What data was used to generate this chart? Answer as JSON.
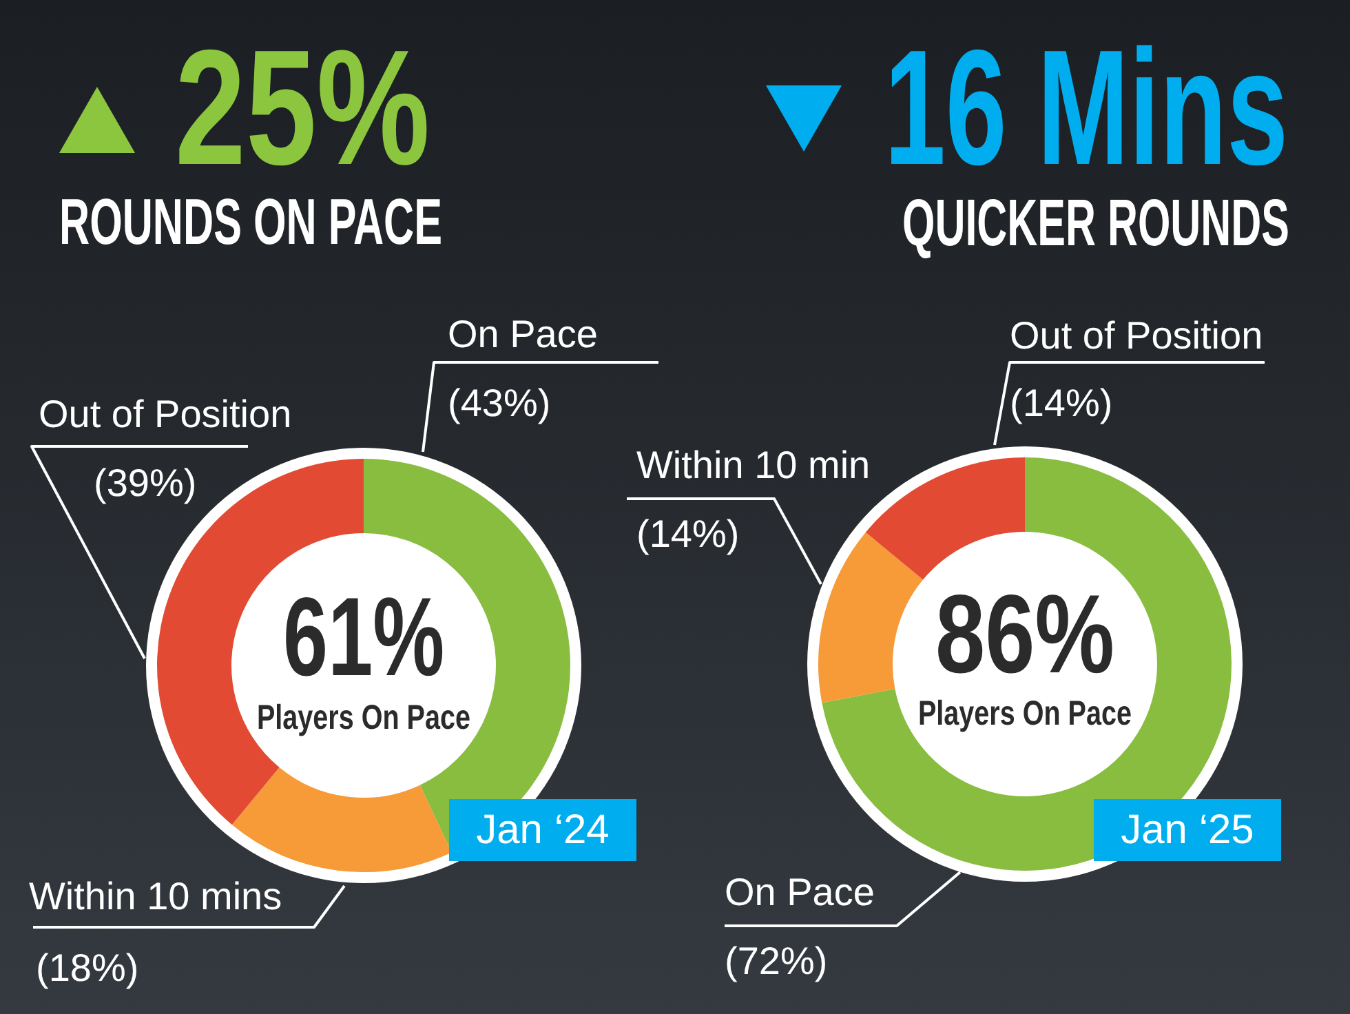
{
  "chart_data": [
    {
      "type": "other",
      "title": "25%",
      "subtitle": "ROUNDS ON PACE",
      "color": "#8cc63f"
    },
    {
      "type": "other",
      "title": "16 Mins",
      "subtitle": "QUICKER ROUNDS",
      "color": "#00aeef"
    },
    {
      "type": "donut",
      "title": "Jan ‘24",
      "annotations": [
        "61%",
        "Players On Pace"
      ],
      "categories": [
        "On Pace",
        "Within 10 mins",
        "Out of Position"
      ],
      "values": [
        43,
        18,
        39
      ],
      "colors": [
        "#88bd40",
        "#f79a38",
        "#e24a33"
      ],
      "value_labels": [
        "(43%)",
        "(18%)",
        "(39%)"
      ]
    },
    {
      "type": "donut",
      "title": "Jan ‘25",
      "annotations": [
        "86%",
        "Players On Pace"
      ],
      "categories": [
        "On Pace",
        "Within 10 min",
        "Out of Position"
      ],
      "values": [
        72,
        14,
        14
      ],
      "colors": [
        "#88bd40",
        "#f79a38",
        "#e24a33"
      ],
      "value_labels": [
        "(72%)",
        "(14%)",
        "(14%)"
      ]
    }
  ]
}
